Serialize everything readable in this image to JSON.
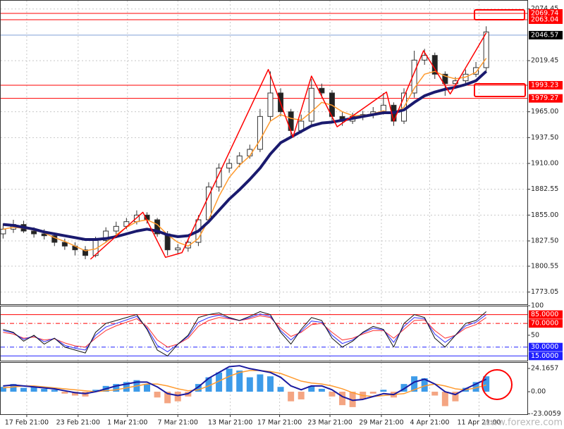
{
  "chart_data": [
    {
      "type": "candlestick",
      "xlim": [
        -0.3,
        51
      ],
      "x": [
        0,
        1,
        2,
        3,
        4,
        5,
        6,
        7,
        8,
        9,
        10,
        11,
        12,
        13,
        14,
        15,
        16,
        17,
        18,
        19,
        20,
        21,
        22,
        23,
        24,
        25,
        26,
        27,
        28,
        29,
        30,
        31,
        32,
        33,
        34,
        35,
        36,
        37,
        38,
        39,
        40,
        41,
        42,
        43,
        44,
        45,
        46,
        47
      ],
      "open": [
        1835,
        1840,
        1845,
        1838,
        1835,
        1833,
        1826,
        1822,
        1818,
        1812,
        1828,
        1838,
        1843,
        1848,
        1855,
        1850,
        1835,
        1818,
        1820,
        1826,
        1850,
        1885,
        1905,
        1910,
        1918,
        1925,
        1960,
        1985,
        1965,
        1945,
        1955,
        1990,
        1985,
        1960,
        1955,
        1960,
        1962,
        1965,
        1972,
        1955,
        1985,
        2020,
        2025,
        2005,
        1995,
        1998,
        2005,
        2012
      ],
      "high": [
        1846,
        1850,
        1849,
        1842,
        1840,
        1836,
        1830,
        1826,
        1822,
        1832,
        1842,
        1848,
        1852,
        1860,
        1858,
        1852,
        1838,
        1824,
        1830,
        1855,
        1890,
        1910,
        1915,
        1922,
        1930,
        1968,
        2008,
        1990,
        1968,
        1962,
        2000,
        1995,
        1988,
        1965,
        1964,
        1966,
        1970,
        1985,
        1975,
        1990,
        2030,
        2032,
        2028,
        2008,
        2002,
        2010,
        2018,
        2056
      ],
      "low": [
        1830,
        1836,
        1836,
        1831,
        1829,
        1822,
        1818,
        1812,
        1808,
        1810,
        1826,
        1834,
        1840,
        1845,
        1846,
        1832,
        1812,
        1814,
        1816,
        1822,
        1846,
        1880,
        1900,
        1906,
        1915,
        1922,
        1955,
        1960,
        1938,
        1942,
        1950,
        1980,
        1955,
        1950,
        1952,
        1956,
        1958,
        1962,
        1950,
        1952,
        1980,
        2015,
        2000,
        1982,
        1990,
        1994,
        2002,
        2008
      ],
      "close": [
        1840,
        1845,
        1838,
        1835,
        1833,
        1826,
        1822,
        1818,
        1812,
        1828,
        1838,
        1843,
        1848,
        1855,
        1850,
        1835,
        1818,
        1820,
        1826,
        1850,
        1885,
        1905,
        1910,
        1918,
        1925,
        1960,
        1985,
        1965,
        1945,
        1955,
        1990,
        1985,
        1960,
        1955,
        1960,
        1962,
        1965,
        1972,
        1955,
        1985,
        2020,
        2025,
        2005,
        1995,
        1998,
        2005,
        2012,
        2050
      ],
      "up_color": "#ffffff",
      "down_color": "#222222",
      "candle_stroke": "#333333",
      "lines": [
        {
          "color": "#ff9a2e",
          "width": 1.5,
          "values": [
            1840,
            1842,
            1841,
            1839,
            1836,
            1831,
            1827,
            1822,
            1817,
            1819,
            1826,
            1834,
            1842,
            1848,
            1850,
            1845,
            1834,
            1826,
            1822,
            1830,
            1850,
            1875,
            1895,
            1908,
            1918,
            1935,
            1955,
            1962,
            1958,
            1956,
            1965,
            1975,
            1972,
            1965,
            1961,
            1961,
            1963,
            1966,
            1963,
            1970,
            1990,
            2005,
            2008,
            2003,
            2000,
            2002,
            2007,
            2022
          ]
        },
        {
          "color": "#1a1a6e",
          "width": 4,
          "values": [
            1845,
            1844,
            1842,
            1840,
            1837,
            1835,
            1833,
            1831,
            1829,
            1829,
            1830,
            1832,
            1835,
            1838,
            1840,
            1838,
            1834,
            1832,
            1833,
            1838,
            1848,
            1860,
            1872,
            1882,
            1893,
            1905,
            1920,
            1932,
            1938,
            1944,
            1950,
            1953,
            1954,
            1956,
            1958,
            1960,
            1962,
            1964,
            1964,
            1967,
            1975,
            1982,
            1986,
            1989,
            1991,
            1994,
            1998,
            2008
          ]
        }
      ],
      "zigzag": {
        "color": "#ff0000",
        "x": [
          8.5,
          13.6,
          15.8,
          17.4,
          25.8,
          28.2,
          30.0,
          32.5,
          37.3,
          38.0,
          40.9,
          43.5,
          47.0
        ],
        "values": [
          1808,
          1858,
          1810,
          1815,
          2010,
          1938,
          2003,
          1949,
          1986,
          1955,
          2030,
          1984,
          2049
        ]
      },
      "ylim": [
        1760,
        2084
      ],
      "yticks": [
        2074.45,
        2019.45,
        {
          "value": 1965,
          "label": "1965.00"
        },
        {
          "value": 1937.5,
          "label": "1937.50"
        },
        {
          "value": 1910,
          "label": "1910.00"
        },
        1882.55,
        {
          "value": 1855,
          "label": "1855.00"
        },
        {
          "value": 1827.5,
          "label": "1827.50"
        },
        1800.55,
        1773.05
      ],
      "hlines": [
        {
          "value": 2069.74,
          "color": "#ff0000",
          "label_bg": "#ff0000"
        },
        {
          "value": 2063.04,
          "color": "#ff0000",
          "label_bg": "#ff0000"
        },
        {
          "value": 2046.57,
          "color": "#7f9fd8",
          "label_bg": "#000000"
        },
        {
          "value": 1993.23,
          "color": "#ff0000",
          "label_bg": "#ff0000"
        },
        {
          "value": 1979.27,
          "color": "#ff0000",
          "label_bg": "#ff0000"
        }
      ],
      "grid": true
    },
    {
      "type": "line",
      "ylim": [
        7,
        100
      ],
      "yticks": [
        100,
        50
      ],
      "levels": [
        {
          "value": 85,
          "label": "85.0000",
          "color": "#ff0000",
          "style": "solid"
        },
        {
          "value": 70,
          "label": "70.0000",
          "color": "#ff0000",
          "style": "dashdot"
        },
        {
          "value": 30,
          "label": "30.0000",
          "color": "#2020ff",
          "style": "dashdot"
        },
        {
          "value": 15,
          "label": "15.0000",
          "color": "#2020ff",
          "style": "solid"
        }
      ],
      "lines": [
        {
          "color": "#ff3030",
          "width": 1,
          "values": [
            55,
            52,
            45,
            47,
            42,
            44,
            37,
            32,
            30,
            45,
            58,
            66,
            72,
            78,
            65,
            42,
            30,
            35,
            45,
            65,
            75,
            80,
            78,
            75,
            78,
            83,
            80,
            62,
            48,
            55,
            68,
            70,
            55,
            42,
            45,
            52,
            58,
            58,
            45,
            60,
            75,
            76,
            58,
            45,
            50,
            62,
            68,
            80
          ]
        },
        {
          "color": "#3030ff",
          "width": 1,
          "values": [
            58,
            54,
            43,
            49,
            39,
            45,
            33,
            28,
            25,
            50,
            64,
            70,
            76,
            82,
            62,
            33,
            22,
            35,
            48,
            72,
            80,
            84,
            79,
            75,
            80,
            86,
            82,
            58,
            42,
            57,
            74,
            72,
            50,
            36,
            42,
            54,
            62,
            59,
            38,
            65,
            80,
            78,
            52,
            38,
            50,
            66,
            72,
            85
          ]
        },
        {
          "color": "#111111",
          "width": 1,
          "values": [
            60,
            55,
            40,
            50,
            35,
            45,
            30,
            25,
            20,
            55,
            70,
            75,
            80,
            85,
            60,
            25,
            15,
            35,
            50,
            80,
            85,
            88,
            80,
            75,
            82,
            90,
            85,
            55,
            35,
            60,
            80,
            75,
            45,
            30,
            40,
            55,
            65,
            60,
            30,
            70,
            85,
            80,
            45,
            30,
            50,
            70,
            75,
            90
          ]
        }
      ]
    },
    {
      "type": "bar",
      "ylim": [
        -23.4,
        30.8
      ],
      "yticks": [
        24.1657,
        {
          "value": 0,
          "label": "0.00"
        },
        -23.0059
      ],
      "histogram": {
        "pos_color": "#3d9be9",
        "neg_color": "#f4a582",
        "values": [
          5,
          8,
          4,
          6,
          3,
          2,
          -2,
          -4,
          -5,
          2,
          6,
          8,
          10,
          12,
          8,
          -6,
          -12,
          -10,
          -5,
          8,
          15,
          20,
          24,
          22,
          15,
          18,
          16,
          5,
          -10,
          -8,
          6,
          3,
          -5,
          -14,
          -16,
          -8,
          -2,
          2,
          -6,
          8,
          16,
          14,
          -4,
          -15,
          -10,
          4,
          10,
          16
        ]
      },
      "lines": [
        {
          "color": "#ff9a2e",
          "width": 1.5,
          "values": [
            4,
            5,
            6,
            6,
            5,
            4,
            3,
            2,
            1,
            0,
            1,
            2,
            4,
            6,
            8,
            8,
            6,
            3,
            1,
            2,
            6,
            11,
            16,
            20,
            22,
            22,
            21,
            19,
            15,
            11,
            9,
            8,
            6,
            3,
            -1,
            -4,
            -5,
            -4,
            -3,
            -2,
            2,
            6,
            8,
            6,
            3,
            2,
            4,
            7
          ]
        },
        {
          "color": "#1a1aa0",
          "width": 2,
          "values": [
            6,
            7,
            6,
            5,
            4,
            3,
            1,
            -1,
            -2,
            0,
            3,
            6,
            8,
            10,
            10,
            5,
            -2,
            -4,
            -2,
            5,
            14,
            20,
            26,
            27,
            24,
            22,
            20,
            15,
            6,
            2,
            6,
            6,
            2,
            -5,
            -9,
            -8,
            -5,
            -2,
            -3,
            3,
            10,
            13,
            8,
            0,
            -3,
            3,
            8,
            13
          ]
        }
      ],
      "xticks": [
        {
          "value": 2.3,
          "label": "17 Feb 21:00"
        },
        {
          "value": 7.3,
          "label": "23 Feb 21:00"
        },
        {
          "value": 12.1,
          "label": "1 Mar 21:00"
        },
        {
          "value": 17,
          "label": "7 Mar 21:00"
        },
        {
          "value": 22.1,
          "label": "13 Mar 21:00"
        },
        {
          "value": 26.9,
          "label": "17 Mar 21:00"
        },
        {
          "value": 31.8,
          "label": "23 Mar 21:00"
        },
        {
          "value": 36.8,
          "label": "29 Mar 21:00"
        },
        {
          "value": 41.5,
          "label": "4 Apr 21:00"
        },
        {
          "value": 46.3,
          "label": "11 Apr 21:00"
        }
      ],
      "watermark": "www.forexre.com"
    }
  ]
}
